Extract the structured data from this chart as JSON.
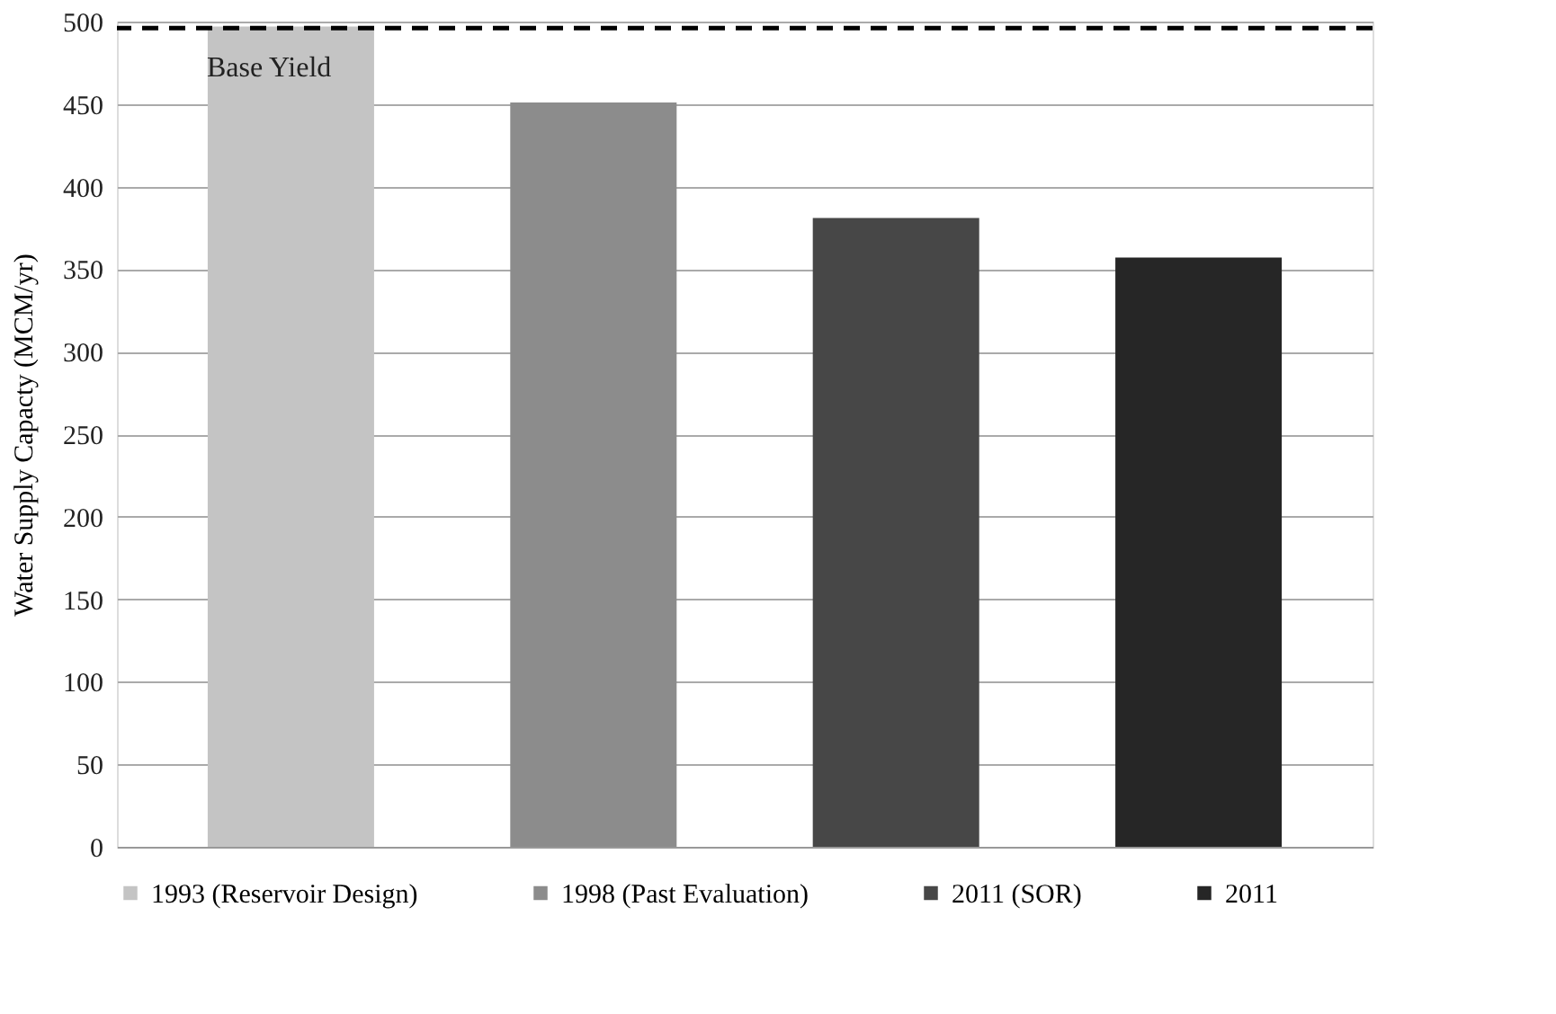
{
  "chart_data": {
    "type": "bar",
    "ylabel": "Water Supply Capacty (MCM/yr)",
    "categories": [
      null,
      null,
      null,
      null
    ],
    "series": [
      {
        "name": "1993 (Reservoir Design)",
        "color": "#c4c4c4",
        "values": [
          497,
          null,
          null,
          null
        ]
      },
      {
        "name": "1998 (Past Evaluation)",
        "color": "#8c8c8c",
        "values": [
          null,
          451,
          null,
          null
        ]
      },
      {
        "name": "2011 (SOR)",
        "color": "#474747",
        "values": [
          null,
          null,
          381,
          null
        ]
      },
      {
        "name": "2011",
        "color": "#262626",
        "values": [
          null,
          null,
          null,
          357
        ]
      }
    ],
    "ylim": [
      0,
      500
    ],
    "yticks": [
      0,
      50,
      100,
      150,
      200,
      250,
      300,
      350,
      400,
      450,
      500
    ],
    "ref_lines": [
      {
        "axis": "y",
        "value": 496,
        "label": "Base Yield",
        "color": "#000000",
        "line_style": "dashed"
      }
    ],
    "grid": "y",
    "legend": "bottom"
  }
}
